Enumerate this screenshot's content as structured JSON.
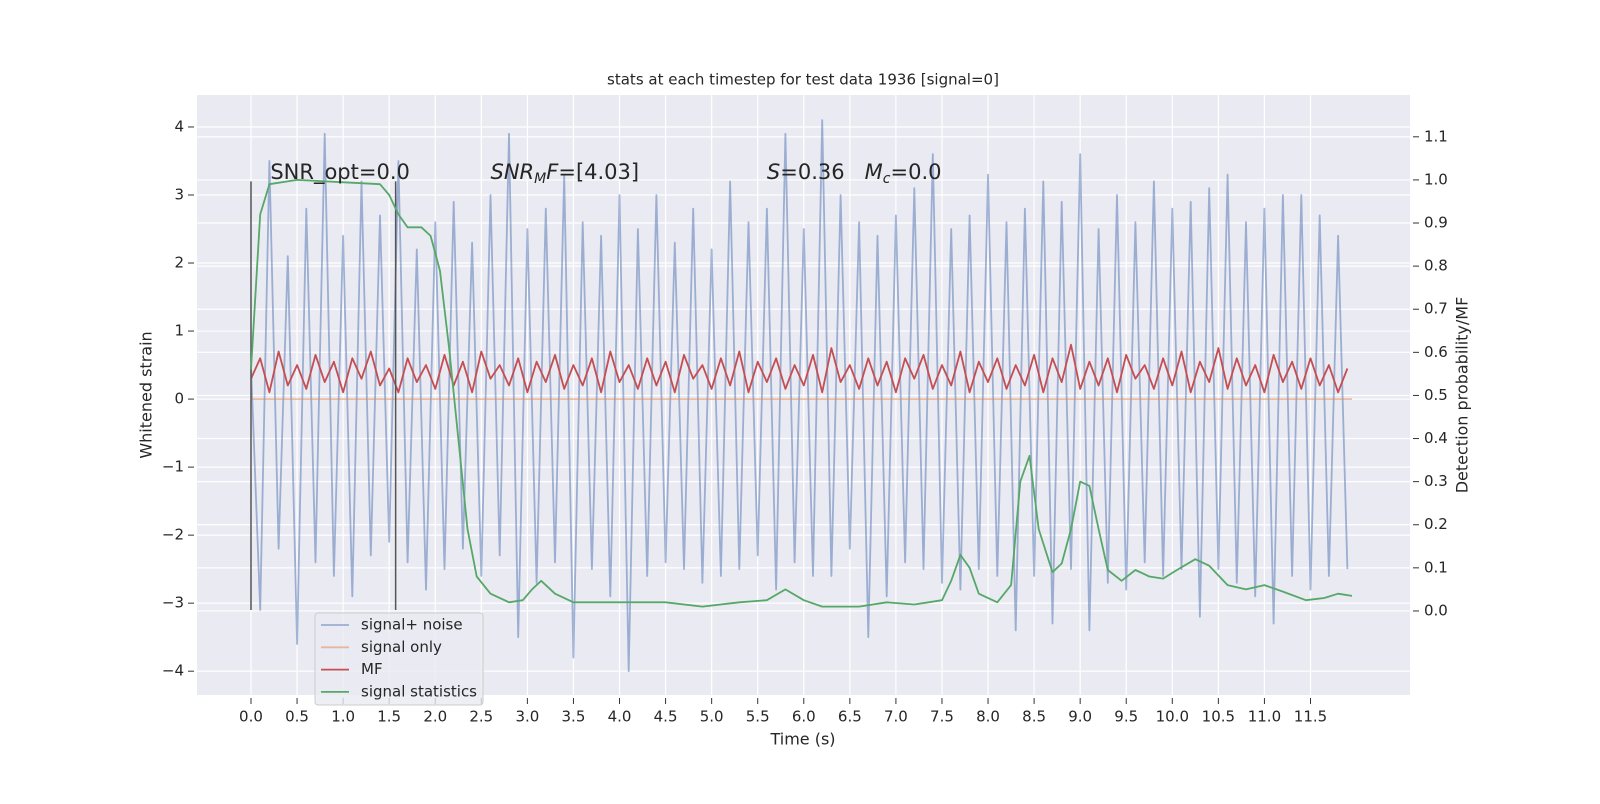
{
  "chart_data": {
    "type": "line",
    "title": "stats at each timestep for test data 1936 [signal=0]",
    "xlabel": "Time (s)",
    "ylabel": "Whitened strain",
    "y2label": "Detection probability/MF",
    "xlim": [
      -0.586,
      12.58
    ],
    "ylim": [
      -4.35,
      4.47
    ],
    "y2lim": [
      -0.195,
      1.197
    ],
    "xticks": [
      {
        "value": 0,
        "label": "0.0"
      },
      {
        "value": 0.5,
        "label": "0.5"
      },
      {
        "value": 1,
        "label": "1.0"
      },
      {
        "value": 1.5,
        "label": "1.5"
      },
      {
        "value": 2,
        "label": "2.0"
      },
      {
        "value": 2.5,
        "label": "2.5"
      },
      {
        "value": 3,
        "label": "3.0"
      },
      {
        "value": 3.5,
        "label": "3.5"
      },
      {
        "value": 4,
        "label": "4.0"
      },
      {
        "value": 4.5,
        "label": "4.5"
      },
      {
        "value": 5,
        "label": "5.0"
      },
      {
        "value": 5.5,
        "label": "5.5"
      },
      {
        "value": 6,
        "label": "6.0"
      },
      {
        "value": 6.5,
        "label": "6.5"
      },
      {
        "value": 7,
        "label": "7.0"
      },
      {
        "value": 7.5,
        "label": "7.5"
      },
      {
        "value": 8,
        "label": "8.0"
      },
      {
        "value": 8.5,
        "label": "8.5"
      },
      {
        "value": 9,
        "label": "9.0"
      },
      {
        "value": 9.5,
        "label": "9.5"
      },
      {
        "value": 10,
        "label": "10.0"
      },
      {
        "value": 10.5,
        "label": "10.5"
      },
      {
        "value": 11,
        "label": "11.0"
      },
      {
        "value": 11.5,
        "label": "11.5"
      }
    ],
    "yticks": [
      {
        "value": -4,
        "label": "−4"
      },
      {
        "value": -3,
        "label": "−3"
      },
      {
        "value": -2,
        "label": "−2"
      },
      {
        "value": -1,
        "label": "−1"
      },
      0,
      1,
      2,
      3,
      4
    ],
    "y2ticks": [
      {
        "value": 0,
        "label": "0.0"
      },
      {
        "value": 0.1,
        "label": "0.1"
      },
      {
        "value": 0.2,
        "label": "0.2"
      },
      {
        "value": 0.3,
        "label": "0.3"
      },
      {
        "value": 0.4,
        "label": "0.4"
      },
      {
        "value": 0.5,
        "label": "0.5"
      },
      {
        "value": 0.6,
        "label": "0.6"
      },
      {
        "value": 0.7,
        "label": "0.7"
      },
      {
        "value": 0.8,
        "label": "0.8"
      },
      {
        "value": 0.9,
        "label": "0.9"
      },
      {
        "value": 1,
        "label": "1.0"
      },
      {
        "value": 1.1,
        "label": "1.1"
      }
    ],
    "grid": true,
    "legend": "lower left",
    "x": [
      0,
      0.1,
      0.2,
      0.3,
      0.4,
      0.5,
      0.6,
      0.7,
      0.8,
      0.9,
      1,
      1.1,
      1.2,
      1.3,
      1.4,
      1.5,
      1.6,
      1.7,
      1.8,
      1.9,
      2,
      2.1,
      2.2,
      2.3,
      2.4,
      2.5,
      2.6,
      2.7,
      2.8,
      2.9,
      3,
      3.1,
      3.2,
      3.3,
      3.4,
      3.5,
      3.6,
      3.7,
      3.8,
      3.9,
      4,
      4.1,
      4.2,
      4.3,
      4.4,
      4.5,
      4.6,
      4.7,
      4.8,
      4.9,
      5,
      5.1,
      5.2,
      5.3,
      5.4,
      5.5,
      5.6,
      5.7,
      5.8,
      5.9,
      6,
      6.1,
      6.2,
      6.3,
      6.4,
      6.5,
      6.6,
      6.7,
      6.8,
      6.9,
      7,
      7.1,
      7.2,
      7.3,
      7.4,
      7.5,
      7.6,
      7.7,
      7.8,
      7.9,
      8,
      8.1,
      8.2,
      8.3,
      8.4,
      8.5,
      8.6,
      8.7,
      8.8,
      8.9,
      9,
      9.1,
      9.2,
      9.3,
      9.4,
      9.5,
      9.6,
      9.7,
      9.8,
      9.9,
      10,
      10.1,
      10.2,
      10.3,
      10.4,
      10.5,
      10.6,
      10.7,
      10.8,
      10.9,
      11,
      11.1,
      11.2,
      11.3,
      11.4,
      11.5,
      11.6,
      11.7,
      11.8,
      11.9
    ],
    "series": [
      {
        "name": "signal+ noise",
        "color": "#4c72b0",
        "alpha": 0.5,
        "values": [
          0.5,
          -3.1,
          3.5,
          -2.2,
          2.1,
          -3.6,
          2.8,
          -2.4,
          3.9,
          -2.6,
          2.4,
          -2.9,
          3.2,
          -2.3,
          2.7,
          -2.1,
          3.5,
          -2.4,
          2.2,
          -2.8,
          2.6,
          -2.5,
          2.9,
          -2.2,
          2.3,
          -2.6,
          3.0,
          -2.3,
          3.9,
          -3.5,
          2.5,
          -2.7,
          2.8,
          -2.4,
          3.3,
          -3.8,
          2.6,
          -2.5,
          2.4,
          -2.9,
          3.0,
          -4.0,
          2.5,
          -2.6,
          3.0,
          -2.4,
          2.3,
          -2.5,
          2.8,
          -2.7,
          2.2,
          -2.6,
          3.2,
          -2.5,
          2.6,
          -2.3,
          2.8,
          -2.8,
          3.9,
          -2.4,
          2.5,
          -2.6,
          4.1,
          -2.6,
          3.0,
          -2.2,
          2.6,
          -3.5,
          2.4,
          -2.9,
          2.7,
          -2.4,
          3.1,
          -2.5,
          3.6,
          -2.7,
          2.5,
          -2.8,
          2.7,
          -2.5,
          3.3,
          -2.6,
          2.6,
          -3.4,
          2.8,
          -2.6,
          3.2,
          -3.3,
          2.9,
          -2.5,
          3.6,
          -3.4,
          2.5,
          -2.7,
          3.0,
          -2.8,
          2.6,
          -2.4,
          3.2,
          -2.6,
          2.8,
          -2.5,
          2.9,
          -3.2,
          3.1,
          -2.5,
          3.3,
          -2.7,
          2.6,
          -2.9,
          2.8,
          -3.3,
          3.0,
          -2.6,
          3.0,
          -2.8,
          2.7,
          -2.6,
          2.4,
          -2.5
        ]
      },
      {
        "name": "signal only",
        "color": "#dd8452",
        "alpha": 0.5,
        "x": [
          0,
          11.95
        ],
        "values": [
          0,
          0
        ]
      },
      {
        "name": "MF",
        "color": "#c44e52",
        "alpha": 1,
        "values": [
          0.3,
          0.6,
          0.1,
          0.7,
          0.2,
          0.5,
          0.15,
          0.65,
          0.25,
          0.55,
          0.1,
          0.6,
          0.3,
          0.7,
          0.2,
          0.45,
          0.1,
          0.6,
          0.25,
          0.5,
          0.15,
          0.65,
          0.2,
          0.55,
          0.1,
          0.7,
          0.3,
          0.5,
          0.2,
          0.6,
          0.1,
          0.55,
          0.25,
          0.65,
          0.15,
          0.5,
          0.2,
          0.6,
          0.1,
          0.7,
          0.25,
          0.5,
          0.15,
          0.6,
          0.2,
          0.55,
          0.1,
          0.65,
          0.3,
          0.5,
          0.15,
          0.6,
          0.2,
          0.7,
          0.1,
          0.55,
          0.25,
          0.6,
          0.15,
          0.5,
          0.2,
          0.65,
          0.1,
          0.75,
          0.25,
          0.5,
          0.15,
          0.6,
          0.2,
          0.55,
          0.1,
          0.6,
          0.3,
          0.65,
          0.15,
          0.5,
          0.2,
          0.7,
          0.1,
          0.55,
          0.25,
          0.6,
          0.15,
          0.5,
          0.2,
          0.65,
          0.1,
          0.6,
          0.25,
          0.8,
          0.15,
          0.55,
          0.2,
          0.6,
          0.1,
          0.65,
          0.3,
          0.5,
          0.15,
          0.6,
          0.2,
          0.7,
          0.1,
          0.55,
          0.25,
          0.75,
          0.15,
          0.6,
          0.2,
          0.5,
          0.1,
          0.65,
          0.25,
          0.55,
          0.15,
          0.6,
          0.2,
          0.5,
          0.1,
          0.45
        ]
      },
      {
        "name": "signal statistics",
        "color": "#55a868",
        "alpha": 1,
        "axis": "y2",
        "x": [
          0,
          0.1,
          0.2,
          0.5,
          1.4,
          1.5,
          1.6,
          1.7,
          1.85,
          1.95,
          2.05,
          2.15,
          2.25,
          2.35,
          2.45,
          2.6,
          2.8,
          2.95,
          3.05,
          3.15,
          3.3,
          3.5,
          4.0,
          4.5,
          4.9,
          5.3,
          5.6,
          5.8,
          6.0,
          6.2,
          6.6,
          6.9,
          7.2,
          7.5,
          7.6,
          7.7,
          7.8,
          7.9,
          8.1,
          8.25,
          8.35,
          8.45,
          8.55,
          8.7,
          8.8,
          8.9,
          9.0,
          9.1,
          9.2,
          9.3,
          9.45,
          9.6,
          9.75,
          9.9,
          10.05,
          10.25,
          10.4,
          10.6,
          10.8,
          11.0,
          11.2,
          11.45,
          11.65,
          11.8,
          11.95
        ],
        "values": [
          0.56,
          0.92,
          0.99,
          1.0,
          0.99,
          0.965,
          0.92,
          0.89,
          0.89,
          0.87,
          0.79,
          0.61,
          0.4,
          0.19,
          0.08,
          0.04,
          0.02,
          0.025,
          0.05,
          0.07,
          0.04,
          0.02,
          0.02,
          0.02,
          0.01,
          0.02,
          0.025,
          0.05,
          0.025,
          0.01,
          0.01,
          0.02,
          0.015,
          0.025,
          0.07,
          0.13,
          0.1,
          0.04,
          0.02,
          0.06,
          0.3,
          0.36,
          0.19,
          0.09,
          0.11,
          0.19,
          0.3,
          0.29,
          0.19,
          0.095,
          0.07,
          0.095,
          0.08,
          0.075,
          0.095,
          0.12,
          0.105,
          0.06,
          0.05,
          0.06,
          0.045,
          0.025,
          0.03,
          0.04,
          0.035
        ]
      }
    ],
    "vlines": {
      "x": [
        0,
        1.57
      ],
      "ymin": -3.1,
      "ymax": 3.2,
      "color": "#555555"
    },
    "annotations": [
      {
        "x": 0.21,
        "y": 3.32,
        "parts": [
          {
            "text": "SNR_opt=0.0",
            "style": "normal"
          }
        ]
      },
      {
        "x": 2.6,
        "y": 3.32,
        "parts": [
          {
            "text": "SNR",
            "style": "italic"
          },
          {
            "text": "M",
            "style": "sub"
          },
          {
            "text": "F",
            "style": "italic"
          },
          {
            "text": "=[4.03]",
            "style": "normal"
          }
        ]
      },
      {
        "x": 5.6,
        "y": 3.32,
        "parts": [
          {
            "text": "S",
            "style": "italic"
          },
          {
            "text": "=0.36   ",
            "style": "normal"
          },
          {
            "text": "M",
            "style": "italic"
          },
          {
            "text": "c",
            "style": "sub"
          },
          {
            "text": "=0.0",
            "style": "normal"
          }
        ]
      }
    ]
  }
}
